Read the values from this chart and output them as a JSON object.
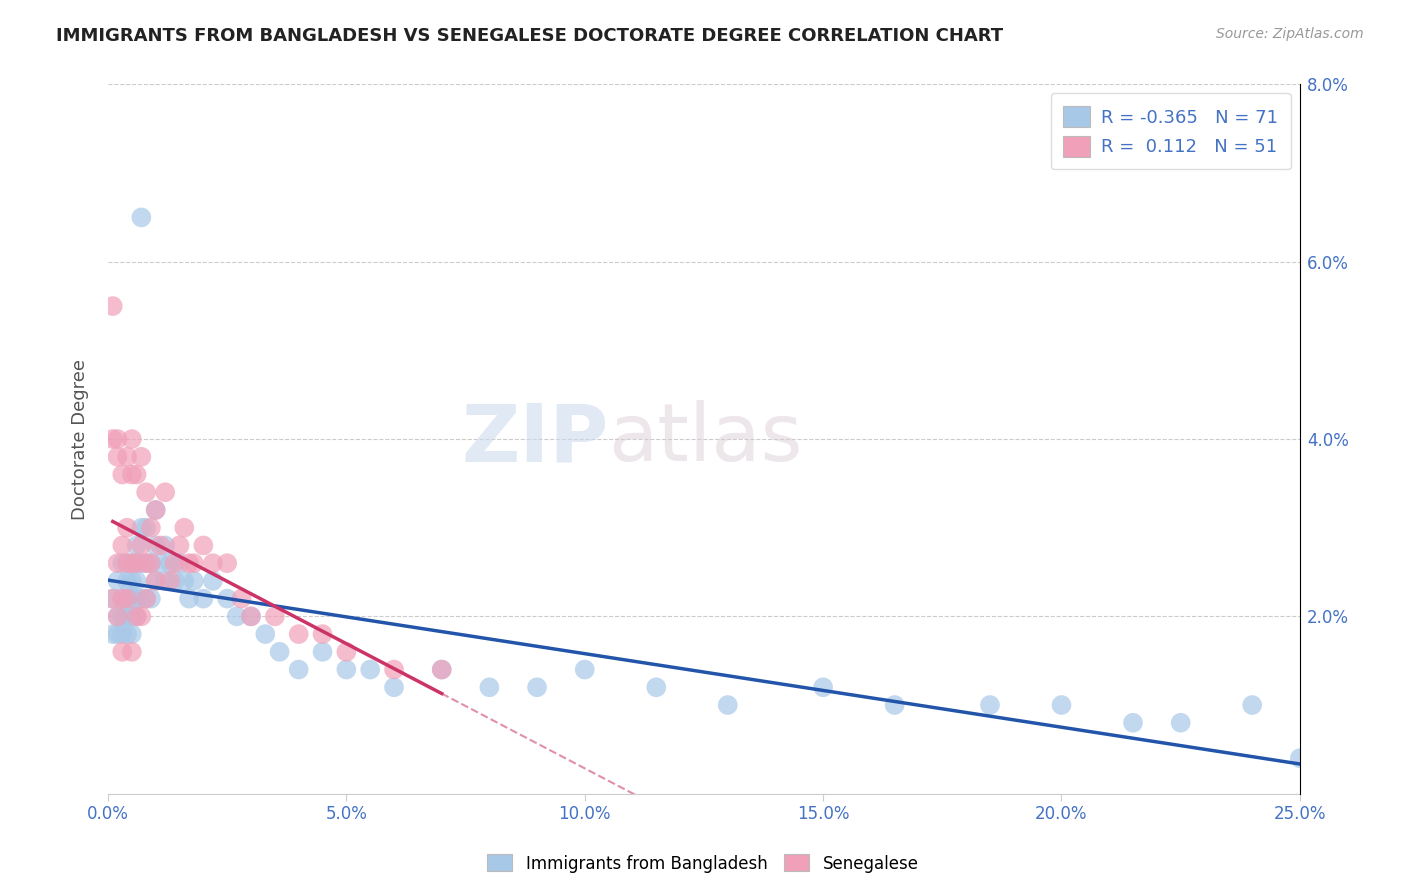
{
  "title": "IMMIGRANTS FROM BANGLADESH VS SENEGALESE DOCTORATE DEGREE CORRELATION CHART",
  "source": "Source: ZipAtlas.com",
  "ylabel": "Doctorate Degree",
  "xlim": [
    0.0,
    0.25
  ],
  "ylim": [
    0.0,
    0.08
  ],
  "xticks": [
    0.0,
    0.05,
    0.1,
    0.15,
    0.2,
    0.25
  ],
  "yticks": [
    0.0,
    0.02,
    0.04,
    0.06,
    0.08
  ],
  "xtick_labels": [
    "0.0%",
    "5.0%",
    "10.0%",
    "15.0%",
    "20.0%",
    "25.0%"
  ],
  "ytick_labels_right": [
    "",
    "2.0%",
    "4.0%",
    "6.0%",
    "8.0%"
  ],
  "watermark": "ZIPatlas",
  "bangladesh_color": "#a8c8e8",
  "senegalese_color": "#f0a0b8",
  "bangladesh_line_color": "#2255aa",
  "senegalese_line_color": "#cc3366",
  "senegalese_dash_color": "#e090a8",
  "r_bangladesh": -0.365,
  "r_senegalese": 0.112,
  "n_bangladesh": 71,
  "n_senegalese": 51,
  "bangladesh_x": [
    0.001,
    0.001,
    0.002,
    0.002,
    0.002,
    0.003,
    0.003,
    0.003,
    0.003,
    0.004,
    0.004,
    0.004,
    0.004,
    0.004,
    0.005,
    0.005,
    0.005,
    0.005,
    0.005,
    0.006,
    0.006,
    0.006,
    0.006,
    0.006,
    0.007,
    0.007,
    0.007,
    0.007,
    0.008,
    0.008,
    0.008,
    0.009,
    0.009,
    0.01,
    0.01,
    0.01,
    0.011,
    0.012,
    0.012,
    0.013,
    0.014,
    0.015,
    0.016,
    0.017,
    0.018,
    0.02,
    0.022,
    0.025,
    0.027,
    0.03,
    0.033,
    0.036,
    0.04,
    0.045,
    0.05,
    0.055,
    0.06,
    0.07,
    0.08,
    0.09,
    0.1,
    0.115,
    0.13,
    0.15,
    0.165,
    0.185,
    0.2,
    0.215,
    0.225,
    0.24,
    0.25
  ],
  "bangladesh_y": [
    0.022,
    0.018,
    0.024,
    0.02,
    0.018,
    0.026,
    0.022,
    0.02,
    0.018,
    0.026,
    0.024,
    0.022,
    0.02,
    0.018,
    0.026,
    0.024,
    0.022,
    0.02,
    0.018,
    0.028,
    0.026,
    0.024,
    0.022,
    0.02,
    0.065,
    0.03,
    0.026,
    0.022,
    0.03,
    0.026,
    0.022,
    0.026,
    0.022,
    0.032,
    0.028,
    0.024,
    0.026,
    0.028,
    0.024,
    0.026,
    0.024,
    0.026,
    0.024,
    0.022,
    0.024,
    0.022,
    0.024,
    0.022,
    0.02,
    0.02,
    0.018,
    0.016,
    0.014,
    0.016,
    0.014,
    0.014,
    0.012,
    0.014,
    0.012,
    0.012,
    0.014,
    0.012,
    0.01,
    0.012,
    0.01,
    0.01,
    0.01,
    0.008,
    0.008,
    0.01,
    0.004
  ],
  "senegalese_x": [
    0.001,
    0.001,
    0.001,
    0.002,
    0.002,
    0.002,
    0.002,
    0.003,
    0.003,
    0.003,
    0.003,
    0.004,
    0.004,
    0.004,
    0.004,
    0.005,
    0.005,
    0.005,
    0.005,
    0.006,
    0.006,
    0.006,
    0.007,
    0.007,
    0.007,
    0.008,
    0.008,
    0.008,
    0.009,
    0.009,
    0.01,
    0.01,
    0.011,
    0.012,
    0.013,
    0.014,
    0.015,
    0.016,
    0.017,
    0.018,
    0.02,
    0.022,
    0.025,
    0.028,
    0.03,
    0.035,
    0.04,
    0.045,
    0.05,
    0.06,
    0.07
  ],
  "senegalese_y": [
    0.055,
    0.04,
    0.022,
    0.04,
    0.038,
    0.026,
    0.02,
    0.036,
    0.028,
    0.022,
    0.016,
    0.038,
    0.03,
    0.026,
    0.022,
    0.04,
    0.036,
    0.026,
    0.016,
    0.036,
    0.026,
    0.02,
    0.038,
    0.028,
    0.02,
    0.034,
    0.026,
    0.022,
    0.03,
    0.026,
    0.032,
    0.024,
    0.028,
    0.034,
    0.024,
    0.026,
    0.028,
    0.03,
    0.026,
    0.026,
    0.028,
    0.026,
    0.026,
    0.022,
    0.02,
    0.02,
    0.018,
    0.018,
    0.016,
    0.014,
    0.014
  ]
}
